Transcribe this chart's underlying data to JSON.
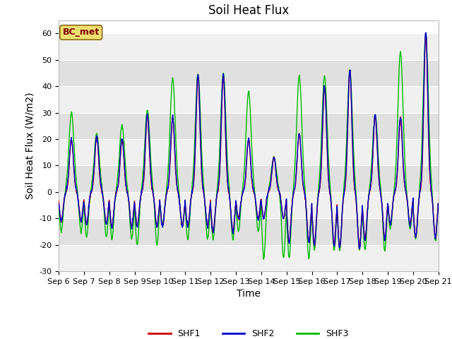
{
  "title": "Soil Heat Flux",
  "ylabel": "Soil Heat Flux (W/m2)",
  "xlabel": "Time",
  "ylim": [
    -30,
    65
  ],
  "yticks": [
    -30,
    -20,
    -10,
    0,
    10,
    20,
    30,
    40,
    50,
    60
  ],
  "start_day": 6,
  "end_day": 21,
  "n_points": 1500,
  "colors": {
    "SHF1": "#cc0000",
    "SHF2": "#0000cc",
    "SHF3": "#00bb00"
  },
  "bc_met_label": "BC_met",
  "bc_met_color": "#800000",
  "bc_met_bg": "#f0e070",
  "background_light": "#f0f0f0",
  "background_dark": "#e0e0e0",
  "title_fontsize": 12,
  "label_fontsize": 10,
  "tick_fontsize": 8,
  "line_width": 1.0
}
